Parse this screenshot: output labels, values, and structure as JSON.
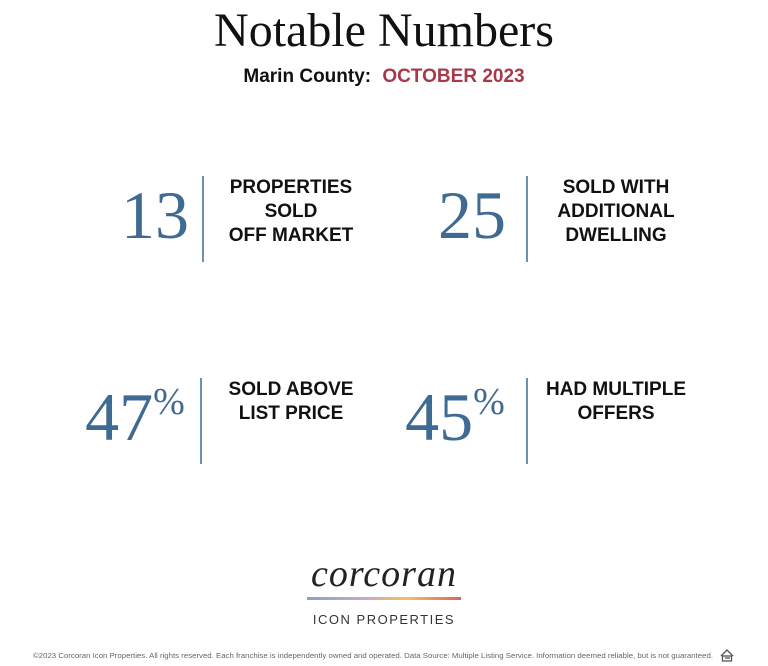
{
  "header": {
    "title": "Notable Numbers",
    "subtitle_label": "Marin County:",
    "subtitle_period": "OCTOBER 2023"
  },
  "stats": [
    {
      "number": 13,
      "lines": [
        "PROPERTIES",
        "SOLD",
        "OFF MARKET"
      ]
    },
    {
      "number": 25,
      "lines": [
        "SOLD WITH",
        "ADDITIONAL",
        "DWELLING"
      ]
    },
    {
      "number": 47,
      "suffix": "%",
      "lines": [
        "SOLD ABOVE",
        "LIST PRICE"
      ]
    },
    {
      "number": 45,
      "suffix": "%",
      "lines": [
        "HAD MULTIPLE",
        "OFFERS"
      ]
    }
  ],
  "logo": {
    "name": "corcoran",
    "tagline": "ICON PROPERTIES"
  },
  "footer": {
    "disclaimer": "©2023 Corcoran Icon Properties. All rights reserved. Each franchise is independently owned and operated. Data Source: Multiple Listing Service. Information deemed reliable, but is not guaranteed."
  }
}
